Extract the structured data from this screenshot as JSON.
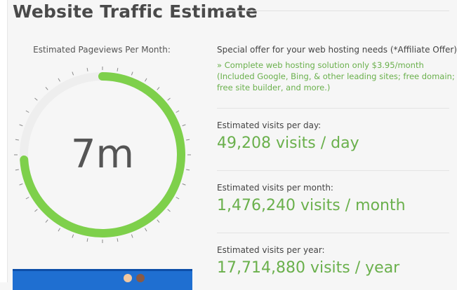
{
  "header": {
    "title": "Website Traffic Estimate"
  },
  "gauge": {
    "label": "Estimated Pageviews Per Month:",
    "value": "7m",
    "fill_fraction": 0.74,
    "color_fill": "#7ed04b",
    "color_track": "#eeeeee"
  },
  "offer": {
    "heading": "Special offer for your web hosting needs (*Affiliate Offer)",
    "text": "» Complete web hosting solution only $3.95/month (Included Google, Bing, & other leading sites; free domain; free site builder, and more.)"
  },
  "stats": [
    {
      "label": "Estimated visits per day:",
      "value": "49,208 visits / day"
    },
    {
      "label": "Estimated visits per month:",
      "value": "1,476,240 visits / month"
    },
    {
      "label": "Estimated visits per year:",
      "value": "17,714,880 visits / year"
    }
  ],
  "colors": {
    "accent_green": "#6ab04c",
    "banner_blue": "#1f6fd1"
  }
}
